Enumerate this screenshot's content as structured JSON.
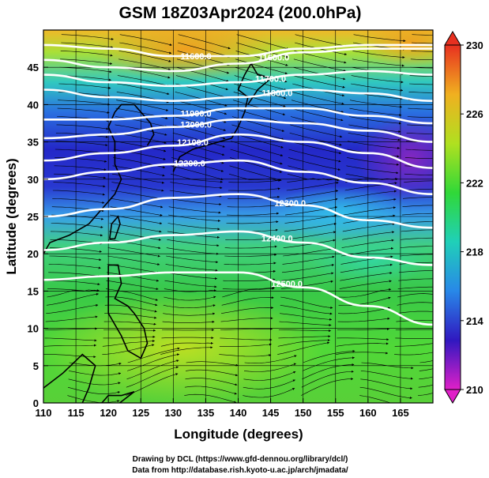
{
  "chart_data": {
    "type": "heatmap",
    "title": "GSM 18Z03Apr2024 (200.0hPa)",
    "xlabel": "Longitude (degrees)",
    "ylabel": "Latitude  (degrees)",
    "xlim": [
      110,
      170
    ],
    "ylim": [
      0,
      50
    ],
    "x_ticks": [
      "110",
      "115",
      "120",
      "125",
      "130",
      "135",
      "140",
      "145",
      "150",
      "155",
      "160",
      "165"
    ],
    "y_ticks": [
      "0",
      "5",
      "10",
      "15",
      "20",
      "25",
      "30",
      "35",
      "40",
      "45"
    ],
    "x_tick_values": [
      110,
      115,
      120,
      125,
      130,
      135,
      140,
      145,
      150,
      155,
      160,
      165
    ],
    "y_tick_values": [
      0,
      5,
      10,
      15,
      20,
      25,
      30,
      35,
      40,
      45
    ],
    "colorbar": {
      "ticks": [
        "210",
        "214",
        "218",
        "222",
        "226",
        "230"
      ],
      "tick_values": [
        210,
        214,
        218,
        222,
        226,
        230
      ],
      "range": [
        210,
        230
      ],
      "colors": [
        "#e020c8",
        "#3018c0",
        "#2888e8",
        "#20d0b8",
        "#30d838",
        "#b0e020",
        "#f0b020",
        "#e83020"
      ]
    },
    "contours": [
      {
        "label": "11600.0",
        "lat": [
          48,
          47.5,
          46.5,
          46.5,
          47.5,
          48,
          48
        ],
        "label_lon": 133.5
      },
      {
        "label": "11600.0",
        "lat": [
          46,
          45,
          44.5,
          45.5,
          47,
          47.5,
          47.5
        ],
        "label_lon": 145.5
      },
      {
        "label": "11700.0",
        "lat": [
          44,
          43,
          42.5,
          43,
          44,
          44.5,
          44
        ],
        "label_lon": 145
      },
      {
        "label": "11800.0",
        "lat": [
          42,
          41,
          40.5,
          41,
          42,
          41.5,
          40.5
        ],
        "label_lon": 146
      },
      {
        "label": "11900.0",
        "lat": [
          38,
          38,
          38.5,
          39.5,
          39.5,
          38.5,
          37.5
        ],
        "label_lon": 133.5
      },
      {
        "label": "12000.0",
        "lat": [
          35.5,
          36,
          37,
          38,
          37.5,
          36.5,
          35
        ],
        "label_lon": 133.5
      },
      {
        "label": "12100.0",
        "lat": [
          32.5,
          33.5,
          34.5,
          36,
          35,
          33.5,
          31.5
        ],
        "label_lon": 133
      },
      {
        "label": "12200.0",
        "lat": [
          30,
          31,
          32,
          32.5,
          31,
          29.5,
          28
        ],
        "label_lon": 132.5
      },
      {
        "label": "12300.0",
        "lat": [
          25,
          26,
          27.5,
          28,
          26.5,
          24.5,
          23.5
        ],
        "label_lon": 148
      },
      {
        "label": "12400.0",
        "lat": [
          20.5,
          21.5,
          22.5,
          23,
          21.5,
          19.5,
          18.5
        ],
        "label_lon": 146
      },
      {
        "label": "12500.0",
        "lat": [
          16.5,
          17,
          17.5,
          17.5,
          15.5,
          13,
          10.5
        ],
        "label_lon": 147.5
      }
    ],
    "contour_lons": [
      110,
      120,
      130,
      140,
      150,
      160,
      170
    ]
  },
  "credits": {
    "drawing": "Drawing by DCL (https://www.gfd-dennou.org/library/dcl/)",
    "source": "Data from http://database.rish.kyoto-u.ac.jp/arch/jmadata/"
  }
}
